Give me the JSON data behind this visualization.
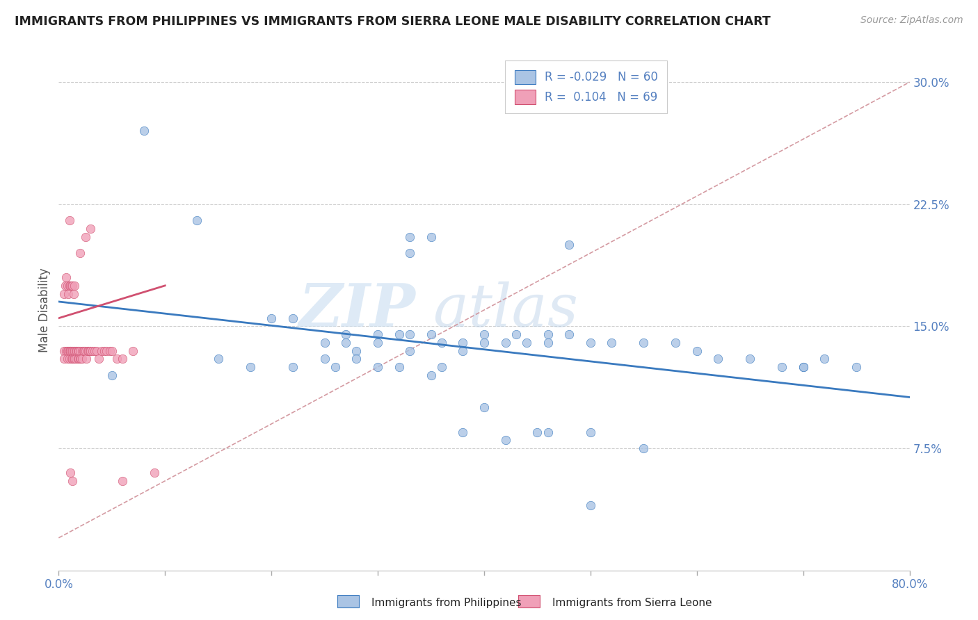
{
  "title": "IMMIGRANTS FROM PHILIPPINES VS IMMIGRANTS FROM SIERRA LEONE MALE DISABILITY CORRELATION CHART",
  "source_text": "Source: ZipAtlas.com",
  "ylabel": "Male Disability",
  "xlim": [
    0.0,
    0.8
  ],
  "ylim": [
    0.0,
    0.32
  ],
  "xticks": [
    0.0,
    0.1,
    0.2,
    0.3,
    0.4,
    0.5,
    0.6,
    0.7,
    0.8
  ],
  "yticks_right": [
    0.075,
    0.15,
    0.225,
    0.3
  ],
  "yticklabels_right": [
    "7.5%",
    "15.0%",
    "22.5%",
    "30.0%"
  ],
  "legend_r1": "-0.029",
  "legend_n1": "60",
  "legend_r2": "0.104",
  "legend_n2": "69",
  "label1": "Immigrants from Philippines",
  "label2": "Immigrants from Sierra Leone",
  "color1": "#aac4e4",
  "color2": "#f0a0b8",
  "line1_color": "#3a7abf",
  "line2_color": "#d05070",
  "dash_color": "#d09098",
  "watermark_zip": "ZIP",
  "watermark_atlas": "atlas",
  "title_color": "#222222",
  "axis_color": "#5580c0",
  "phil_x": [
    0.08,
    0.13,
    0.33,
    0.33,
    0.35,
    0.38,
    0.4,
    0.43,
    0.46,
    0.48,
    0.2,
    0.22,
    0.25,
    0.27,
    0.27,
    0.28,
    0.3,
    0.3,
    0.32,
    0.33,
    0.33,
    0.35,
    0.36,
    0.38,
    0.4,
    0.42,
    0.44,
    0.46,
    0.48,
    0.5,
    0.52,
    0.55,
    0.58,
    0.6,
    0.62,
    0.65,
    0.68,
    0.7,
    0.72,
    0.75,
    0.3,
    0.35,
    0.4,
    0.45,
    0.5,
    0.55,
    0.25,
    0.28,
    0.32,
    0.36,
    0.15,
    0.18,
    0.22,
    0.26,
    0.05,
    0.38,
    0.42,
    0.46,
    0.7,
    0.5
  ],
  "phil_y": [
    0.27,
    0.215,
    0.205,
    0.195,
    0.205,
    0.14,
    0.14,
    0.145,
    0.145,
    0.2,
    0.155,
    0.155,
    0.14,
    0.14,
    0.145,
    0.135,
    0.145,
    0.14,
    0.145,
    0.145,
    0.135,
    0.145,
    0.14,
    0.135,
    0.145,
    0.14,
    0.14,
    0.14,
    0.145,
    0.14,
    0.14,
    0.14,
    0.14,
    0.135,
    0.13,
    0.13,
    0.125,
    0.125,
    0.13,
    0.125,
    0.125,
    0.12,
    0.1,
    0.085,
    0.085,
    0.075,
    0.13,
    0.13,
    0.125,
    0.125,
    0.13,
    0.125,
    0.125,
    0.125,
    0.12,
    0.085,
    0.08,
    0.085,
    0.125,
    0.04
  ],
  "sl_x": [
    0.005,
    0.005,
    0.007,
    0.008,
    0.008,
    0.009,
    0.01,
    0.01,
    0.011,
    0.011,
    0.012,
    0.012,
    0.013,
    0.013,
    0.014,
    0.014,
    0.015,
    0.015,
    0.016,
    0.016,
    0.017,
    0.018,
    0.018,
    0.019,
    0.019,
    0.02,
    0.02,
    0.021,
    0.022,
    0.022,
    0.023,
    0.024,
    0.025,
    0.026,
    0.027,
    0.028,
    0.029,
    0.03,
    0.032,
    0.034,
    0.036,
    0.038,
    0.04,
    0.043,
    0.045,
    0.048,
    0.05,
    0.055,
    0.06,
    0.07,
    0.005,
    0.006,
    0.007,
    0.008,
    0.009,
    0.01,
    0.011,
    0.012,
    0.013,
    0.014,
    0.015,
    0.02,
    0.025,
    0.03,
    0.01,
    0.011,
    0.013,
    0.06,
    0.09
  ],
  "sl_y": [
    0.135,
    0.13,
    0.135,
    0.135,
    0.13,
    0.135,
    0.135,
    0.13,
    0.135,
    0.135,
    0.135,
    0.13,
    0.135,
    0.13,
    0.135,
    0.13,
    0.13,
    0.135,
    0.135,
    0.13,
    0.135,
    0.135,
    0.13,
    0.135,
    0.13,
    0.135,
    0.13,
    0.13,
    0.135,
    0.13,
    0.135,
    0.135,
    0.135,
    0.13,
    0.135,
    0.135,
    0.135,
    0.135,
    0.135,
    0.135,
    0.135,
    0.13,
    0.135,
    0.135,
    0.135,
    0.135,
    0.135,
    0.13,
    0.13,
    0.135,
    0.17,
    0.175,
    0.18,
    0.175,
    0.17,
    0.175,
    0.175,
    0.175,
    0.175,
    0.17,
    0.175,
    0.195,
    0.205,
    0.21,
    0.215,
    0.06,
    0.055,
    0.055,
    0.06
  ]
}
